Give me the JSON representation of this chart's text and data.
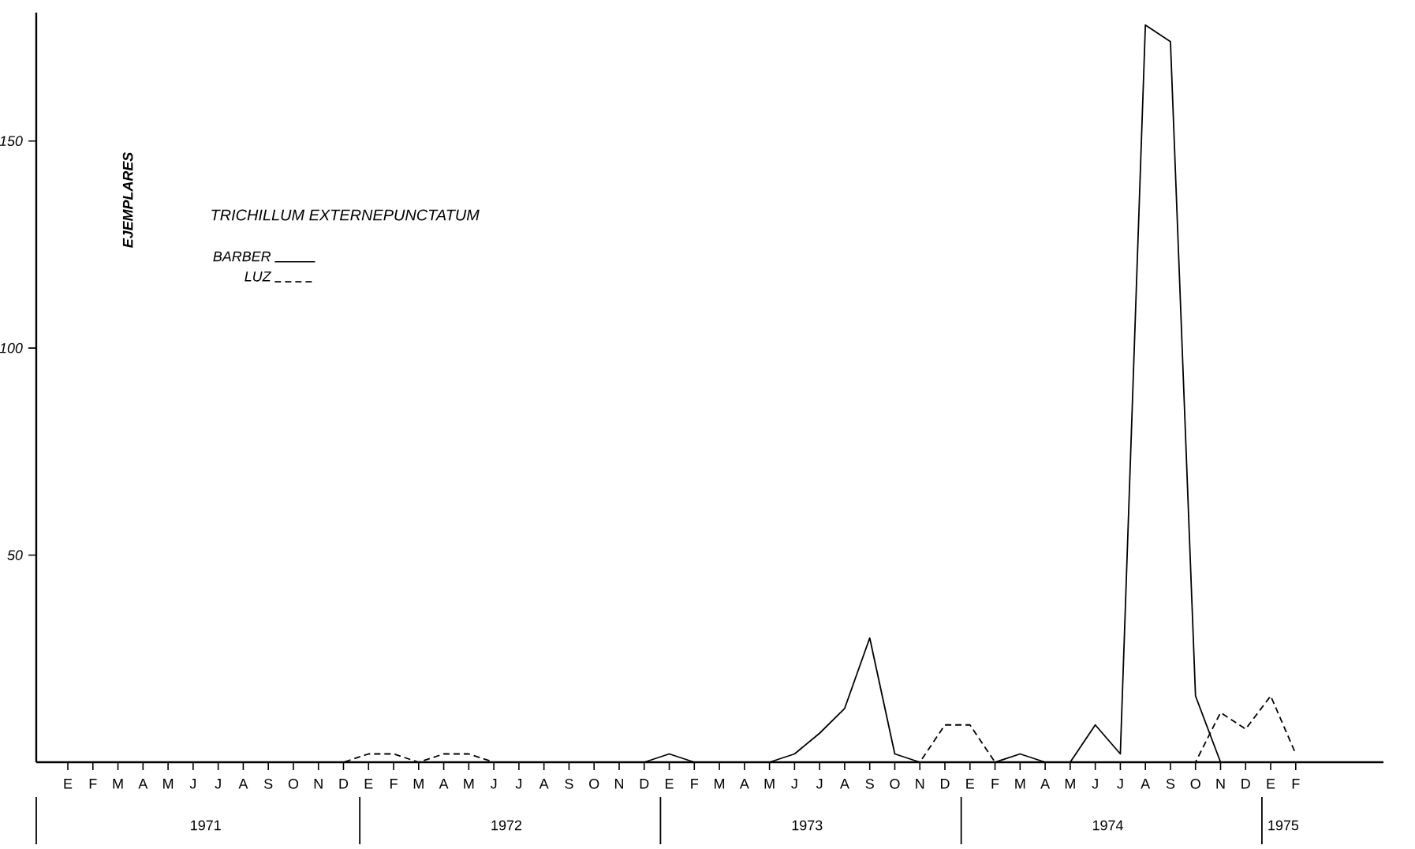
{
  "chart_data": {
    "type": "line",
    "title": "TRICHILLUM EXTERNEPUNCTATUM",
    "ylabel": "EJEMPLARES",
    "categories": [
      "E",
      "F",
      "M",
      "A",
      "M",
      "J",
      "J",
      "A",
      "S",
      "O",
      "N",
      "D",
      "E",
      "F",
      "M",
      "A",
      "M",
      "J",
      "J",
      "A",
      "S",
      "O",
      "N",
      "D",
      "E",
      "F",
      "M",
      "A",
      "M",
      "J",
      "J",
      "A",
      "S",
      "O",
      "N",
      "D",
      "E",
      "F",
      "M",
      "A",
      "M",
      "J",
      "J",
      "A",
      "S",
      "O",
      "N",
      "D",
      "E",
      "F"
    ],
    "series": [
      {
        "name": "BARBER",
        "color": "#000000",
        "line_style": "solid",
        "values": [
          0,
          0,
          0,
          0,
          0,
          0,
          0,
          0,
          0,
          0,
          0,
          0,
          0,
          0,
          0,
          0,
          0,
          0,
          0,
          0,
          0,
          0,
          0,
          0,
          2,
          0,
          0,
          0,
          0,
          2,
          7,
          13,
          30,
          2,
          0,
          0,
          0,
          0,
          2,
          0,
          0,
          9,
          2,
          178,
          174,
          16,
          0,
          0,
          0,
          0
        ]
      },
      {
        "name": "LUZ",
        "color": "#000000",
        "line_style": "dashed",
        "values": [
          0,
          0,
          0,
          0,
          0,
          0,
          0,
          0,
          0,
          0,
          0,
          0,
          2,
          2,
          0,
          2,
          2,
          0,
          0,
          0,
          0,
          0,
          0,
          0,
          0,
          0,
          0,
          0,
          0,
          0,
          0,
          0,
          0,
          0,
          0,
          9,
          9,
          0,
          0,
          0,
          0,
          0,
          0,
          0,
          0,
          0,
          12,
          8,
          16,
          2
        ]
      }
    ],
    "ylim": [
      0,
      181
    ],
    "yticks": [
      50,
      100,
      150
    ],
    "grid": false,
    "legend": "top left",
    "annotations": [
      "1971",
      "1972",
      "1973",
      "1974",
      "1975"
    ]
  }
}
